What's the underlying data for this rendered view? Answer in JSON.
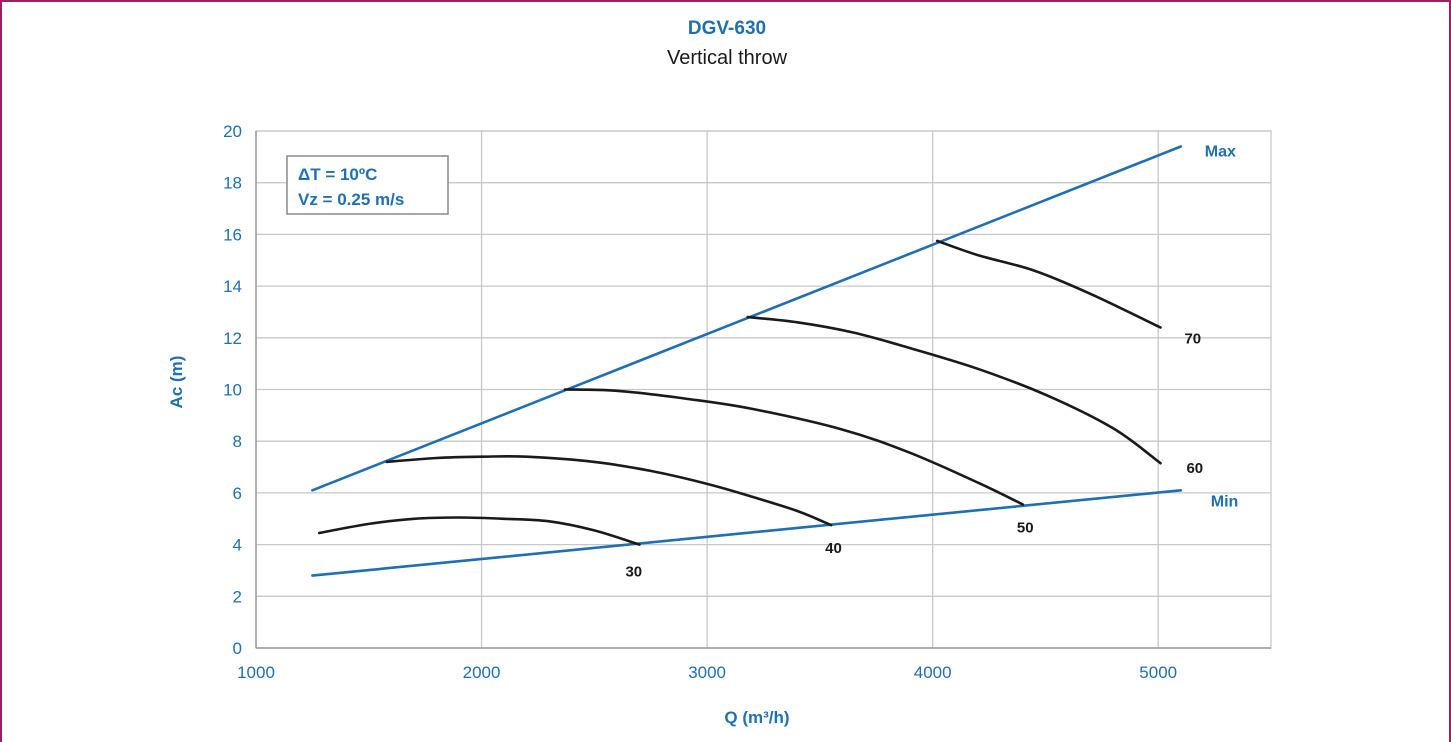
{
  "chart_data": {
    "type": "line",
    "title": "DGV-630",
    "subtitle": "Vertical throw",
    "xlabel": "Q (m³/h)",
    "ylabel": "Ac (m)",
    "xlim": [
      1000,
      5500
    ],
    "ylim": [
      0,
      20
    ],
    "xticks": [
      1000,
      2000,
      3000,
      4000,
      5000
    ],
    "yticks": [
      0,
      2,
      4,
      6,
      8,
      10,
      12,
      14,
      16,
      18,
      20
    ],
    "grid": true,
    "annotation_box": [
      "ΔT = 10ºC",
      "Vz = 0.25 m/s"
    ],
    "series": [
      {
        "name": "Max",
        "role": "boundary",
        "color": "#1f6fb4",
        "x": [
          1250,
          5100
        ],
        "y": [
          6.1,
          19.4
        ]
      },
      {
        "name": "Min",
        "role": "boundary",
        "color": "#1f6fb4",
        "x": [
          1250,
          5100
        ],
        "y": [
          2.8,
          6.1
        ]
      },
      {
        "name": "30",
        "role": "curve",
        "color": "#1a1a1a",
        "x": [
          1280,
          1500,
          1700,
          1900,
          2100,
          2300,
          2500,
          2700
        ],
        "y": [
          4.45,
          4.8,
          5.0,
          5.05,
          5.0,
          4.9,
          4.55,
          4.0
        ]
      },
      {
        "name": "40",
        "role": "curve",
        "color": "#1a1a1a",
        "x": [
          1580,
          1800,
          2000,
          2200,
          2500,
          2750,
          3000,
          3200,
          3400,
          3550
        ],
        "y": [
          7.2,
          7.35,
          7.4,
          7.4,
          7.2,
          6.85,
          6.35,
          5.85,
          5.3,
          4.75
        ]
      },
      {
        "name": "50",
        "role": "curve",
        "color": "#1a1a1a",
        "x": [
          2370,
          2600,
          2900,
          3200,
          3600,
          3900,
          4200,
          4400
        ],
        "y": [
          10.0,
          9.95,
          9.65,
          9.25,
          8.45,
          7.55,
          6.4,
          5.55
        ]
      },
      {
        "name": "60",
        "role": "curve",
        "color": "#1a1a1a",
        "x": [
          3180,
          3400,
          3650,
          3900,
          4200,
          4500,
          4800,
          5010
        ],
        "y": [
          12.8,
          12.6,
          12.2,
          11.6,
          10.8,
          9.8,
          8.5,
          7.15
        ]
      },
      {
        "name": "70",
        "role": "curve",
        "color": "#1a1a1a",
        "x": [
          4020,
          4200,
          4450,
          4700,
          5010
        ],
        "y": [
          15.75,
          15.2,
          14.6,
          13.7,
          12.4
        ]
      }
    ],
    "series_labels": [
      "Max",
      "Min",
      "70",
      "60",
      "50",
      "40",
      "30"
    ]
  },
  "colors": {
    "axis_text": "#1f6fb4",
    "boundary_line": "#1f6fb4",
    "curve_line": "#1a1a1a",
    "grid": "#c8c8c8",
    "frame_border": "#9c1f66"
  }
}
